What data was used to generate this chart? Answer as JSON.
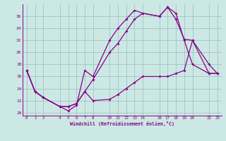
{
  "xlabel": "Windchill (Refroidissement éolien,°C)",
  "background_color": "#cce8e4",
  "line_color": "#880088",
  "grid_color": "#99bbbb",
  "ylim": [
    19.5,
    38.0
  ],
  "xlim": [
    -0.5,
    23.5
  ],
  "xticks": [
    0,
    1,
    2,
    4,
    5,
    6,
    7,
    8,
    10,
    11,
    12,
    13,
    14,
    16,
    17,
    18,
    19,
    20,
    22,
    23
  ],
  "yticks": [
    20,
    22,
    24,
    26,
    28,
    30,
    32,
    34,
    36
  ],
  "line1_x": [
    0,
    1,
    2,
    4,
    5,
    6,
    7,
    8,
    10,
    11,
    12,
    13,
    14,
    16,
    17,
    18,
    19,
    20,
    22,
    23
  ],
  "line1_y": [
    27,
    23.5,
    22.5,
    21.0,
    20.3,
    21.2,
    27.0,
    26.0,
    32.0,
    34.0,
    35.5,
    37.0,
    36.5,
    36.0,
    37.5,
    36.5,
    32.0,
    28.0,
    26.5,
    26.5
  ],
  "line2_x": [
    0,
    1,
    2,
    4,
    5,
    6,
    7,
    8,
    10,
    11,
    12,
    13,
    14,
    16,
    17,
    18,
    19,
    20,
    22,
    23
  ],
  "line2_y": [
    27,
    23.5,
    22.5,
    21.0,
    21.0,
    21.5,
    23.5,
    25.5,
    30.0,
    31.5,
    33.5,
    35.5,
    36.5,
    36.0,
    37.5,
    35.5,
    32.2,
    32.0,
    28.0,
    26.5
  ],
  "line3_x": [
    0,
    1,
    2,
    4,
    5,
    6,
    7,
    8,
    10,
    11,
    12,
    13,
    14,
    16,
    17,
    18,
    19,
    20,
    22,
    23
  ],
  "line3_y": [
    27.0,
    23.5,
    22.5,
    21.0,
    21.0,
    21.5,
    23.5,
    22.0,
    22.2,
    23.0,
    24.0,
    25.0,
    26.0,
    26.0,
    26.0,
    26.5,
    27.0,
    32.0,
    26.5,
    26.5
  ]
}
